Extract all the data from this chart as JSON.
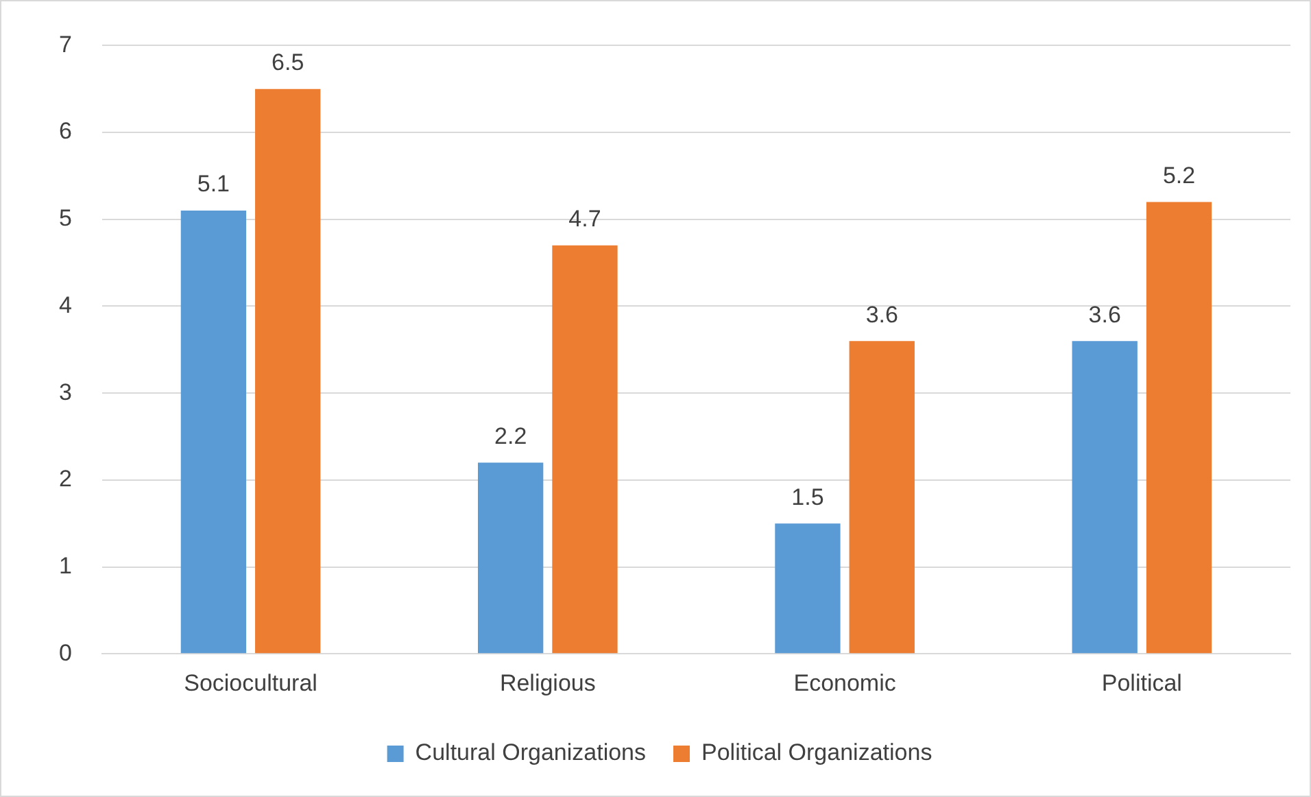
{
  "chart_data": {
    "type": "bar",
    "categories": [
      "Sociocultural",
      "Religious",
      "Economic",
      "Political"
    ],
    "series": [
      {
        "name": "Cultural Organizations",
        "color": "#5b9bd5",
        "values": [
          5.1,
          2.2,
          1.5,
          3.6
        ]
      },
      {
        "name": "Political Organizations",
        "color": "#ed7d31",
        "values": [
          6.5,
          4.7,
          3.6,
          5.2
        ]
      }
    ],
    "ylim": [
      0,
      7
    ],
    "yticks": [
      0,
      1,
      2,
      3,
      4,
      5,
      6,
      7
    ],
    "grid": "y",
    "legend": "bottom",
    "data_labels": true
  }
}
